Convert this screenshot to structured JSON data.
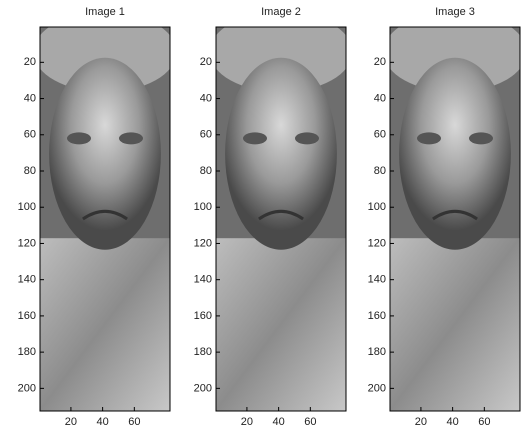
{
  "chart_data": [
    {
      "type": "image",
      "title": "Image 1",
      "xlim": [
        0.5,
        82.5
      ],
      "ylim": [
        0.5,
        212.5
      ],
      "yreverse": true,
      "xticks": [
        20,
        40,
        60
      ],
      "yticks": [
        20,
        40,
        60,
        80,
        100,
        120,
        140,
        160,
        180,
        200
      ]
    },
    {
      "type": "image",
      "title": "Image 2",
      "xlim": [
        0.5,
        82.5
      ],
      "ylim": [
        0.5,
        212.5
      ],
      "yreverse": true,
      "xticks": [
        20,
        40,
        60
      ],
      "yticks": [
        20,
        40,
        60,
        80,
        100,
        120,
        140,
        160,
        180,
        200
      ]
    },
    {
      "type": "image",
      "title": "Image 3",
      "xlim": [
        0.5,
        82.5
      ],
      "ylim": [
        0.5,
        212.5
      ],
      "yreverse": true,
      "xticks": [
        20,
        40,
        60
      ],
      "yticks": [
        20,
        40,
        60,
        80,
        100,
        120,
        140,
        160,
        180,
        200
      ]
    }
  ]
}
